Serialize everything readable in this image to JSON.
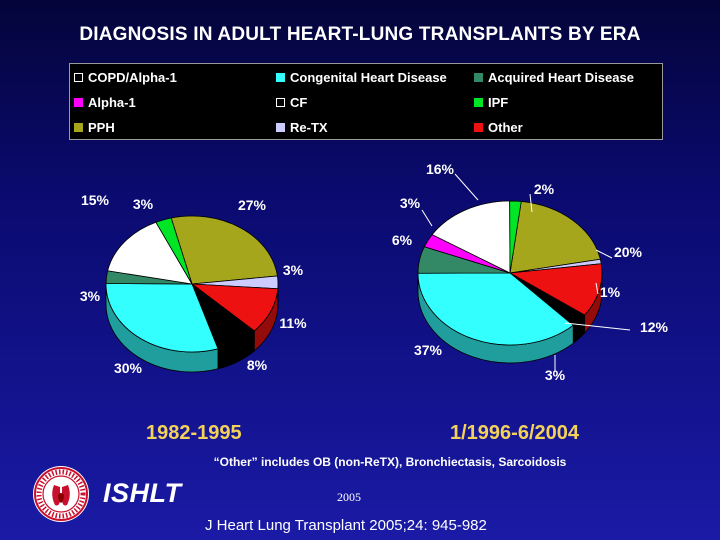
{
  "title": "DIAGNOSIS IN ADULT HEART-LUNG TRANSPLANTS BY ERA",
  "legend": [
    {
      "label": "COPD/Alpha-1",
      "color": "#ffffff"
    },
    {
      "label": "Congenital Heart Disease",
      "color": "#33ffff"
    },
    {
      "label": "Acquired Heart Disease",
      "color": "#338866"
    },
    {
      "label": "Alpha-1",
      "color": "#ff00ff"
    },
    {
      "label": "CF",
      "color": "#000000"
    },
    {
      "label": "IPF",
      "color": "#00e626"
    },
    {
      "label": "PPH",
      "color": "#a6a61c"
    },
    {
      "label": "Re-TX",
      "color": "#ccccff"
    },
    {
      "label": "Other",
      "color": "#ee1111"
    }
  ],
  "chart_data": [
    {
      "type": "pie",
      "era": "1982-1995",
      "slices": [
        {
          "category": "PPH",
          "value": 27,
          "label": "27%",
          "color": "#a6a61c"
        },
        {
          "category": "Re-TX",
          "value": 3,
          "label": "3%",
          "color": "#ccccff"
        },
        {
          "category": "Other",
          "value": 11,
          "label": "11%",
          "color": "#ee1111"
        },
        {
          "category": "CF",
          "value": 8,
          "label": "8%",
          "color": "#000000"
        },
        {
          "category": "Congenital Heart Disease",
          "value": 30,
          "label": "30%",
          "color": "#33ffff"
        },
        {
          "category": "Acquired Heart Disease",
          "value": 3,
          "label": "3%",
          "color": "#338866"
        },
        {
          "category": "COPD/Alpha-1",
          "value": 15,
          "label": "15%",
          "color": "#ffffff"
        },
        {
          "category": "IPF",
          "value": 3,
          "label": "3%",
          "color": "#00e626"
        }
      ]
    },
    {
      "type": "pie",
      "era": "1/1996-6/2004",
      "slices": [
        {
          "category": "PPH",
          "value": 20,
          "label": "20%",
          "color": "#a6a61c"
        },
        {
          "category": "Re-TX",
          "value": 1,
          "label": "1%",
          "color": "#ccccff"
        },
        {
          "category": "Other",
          "value": 12,
          "label": "12%",
          "color": "#ee1111"
        },
        {
          "category": "CF",
          "value": 3,
          "label": "3%",
          "color": "#000000"
        },
        {
          "category": "Congenital Heart Disease",
          "value": 37,
          "label": "37%",
          "color": "#33ffff"
        },
        {
          "category": "Acquired Heart Disease",
          "value": 6,
          "label": "6%",
          "color": "#338866"
        },
        {
          "category": "Alpha-1",
          "value": 3,
          "label": "3%",
          "color": "#ff00ff"
        },
        {
          "category": "COPD/Alpha-1",
          "value": 16,
          "label": "16%",
          "color": "#ffffff"
        },
        {
          "category": "IPF",
          "value": 2,
          "label": "2%",
          "color": "#00e626"
        }
      ]
    }
  ],
  "footnote": "“Other” includes OB (non-ReTX), Bronchiectasis, Sarcoidosis",
  "logo_text": "ISHLT",
  "year": "2005",
  "citation": "J Heart Lung Transplant 2005;24: 945-982"
}
